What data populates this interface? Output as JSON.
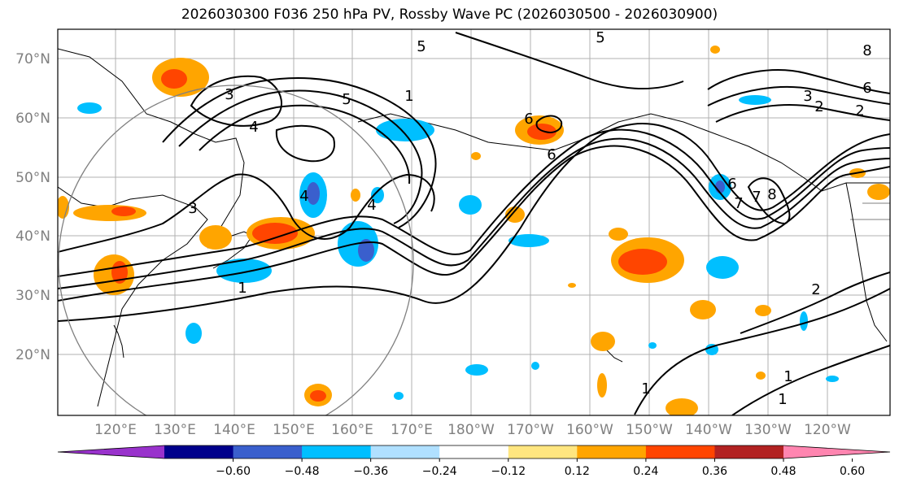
{
  "title": "2026030300 F036 250 hPa PV, Rossby Wave PC (2026030500 - 2026030900)",
  "lat_labels": [
    "70°N",
    "60°N",
    "50°N",
    "40°N",
    "30°N",
    "20°N"
  ],
  "lon_labels": [
    "120°E",
    "130°E",
    "140°E",
    "150°E",
    "160°E",
    "170°E",
    "180°W",
    "170°W",
    "160°W",
    "150°W",
    "140°W",
    "130°W",
    "120°W"
  ],
  "colorbar": {
    "ticks": [
      "−0.60",
      "−0.48",
      "−0.36",
      "−0.24",
      "−0.12",
      "0.12",
      "0.24",
      "0.36",
      "0.48",
      "0.60"
    ],
    "colors": [
      "#9932cc",
      "#00008b",
      "#3a5fcd",
      "#00bfff",
      "#b0e0ff",
      "#ffffff",
      "#ffe680",
      "#ffa500",
      "#ff4500",
      "#b22222",
      "#ff85b0"
    ]
  },
  "contour_labels": [
    "5",
    "5",
    "3",
    "4",
    "5",
    "1",
    "3",
    "4",
    "1",
    "4",
    "6",
    "3",
    "2",
    "6",
    "8",
    "1",
    "1",
    "1",
    "2",
    "2",
    "6",
    "8",
    "7",
    "6",
    "7"
  ],
  "colors": {
    "grid": "#b0b0b0",
    "contour": "#000000",
    "circle": "#808080"
  }
}
